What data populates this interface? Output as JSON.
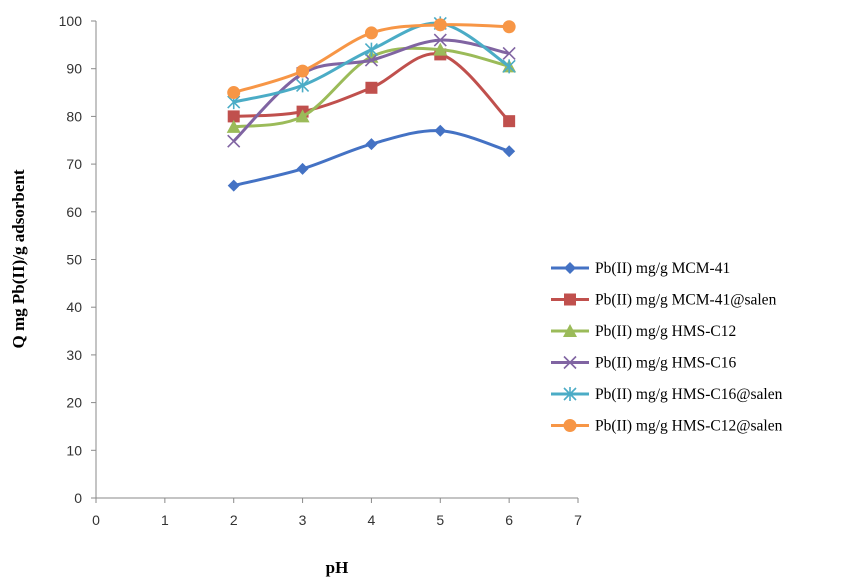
{
  "chart_data": {
    "type": "line",
    "title": "",
    "xlabel": "pH",
    "ylabel": "Q mg Pb(II)/g adsorbent",
    "xlim": [
      0,
      7
    ],
    "ylim": [
      0,
      100
    ],
    "x_ticks": [
      "0",
      "1",
      "2",
      "3",
      "4",
      "5",
      "6",
      "7"
    ],
    "y_ticks": [
      "0",
      "10",
      "20",
      "30",
      "40",
      "50",
      "60",
      "70",
      "80",
      "90",
      "100"
    ],
    "grid": false,
    "smooth": true,
    "legend_position": "right",
    "x": [
      2,
      3,
      4,
      5,
      6
    ],
    "series": [
      {
        "name": "Pb(II) mg/g MCM-41",
        "values": [
          65.5,
          69,
          74.2,
          77,
          72.7
        ],
        "color": "#4472c4",
        "marker": "diamond"
      },
      {
        "name": "Pb(II) mg/g MCM-41@salen",
        "values": [
          80,
          81,
          86,
          93,
          79
        ],
        "color": "#c0504d",
        "marker": "square"
      },
      {
        "name": "Pb(II) mg/g HMS-C12",
        "values": [
          77.8,
          80,
          92.5,
          94,
          90.5
        ],
        "color": "#9bbb59",
        "marker": "triangle"
      },
      {
        "name": "Pb(II) mg/g HMS-C16",
        "values": [
          74.8,
          89,
          91.8,
          96,
          93.2
        ],
        "color": "#8064a2",
        "marker": "x"
      },
      {
        "name": "Pb(II) mg/g HMS-C16@salen",
        "values": [
          83,
          86.5,
          94,
          99.5,
          90.5
        ],
        "color": "#4bacc6",
        "marker": "star"
      },
      {
        "name": "Pb(II) mg/g HMS-C12@salen",
        "values": [
          85,
          89.5,
          97.5,
          99.2,
          98.8
        ],
        "color": "#f79646",
        "marker": "circle"
      }
    ]
  }
}
